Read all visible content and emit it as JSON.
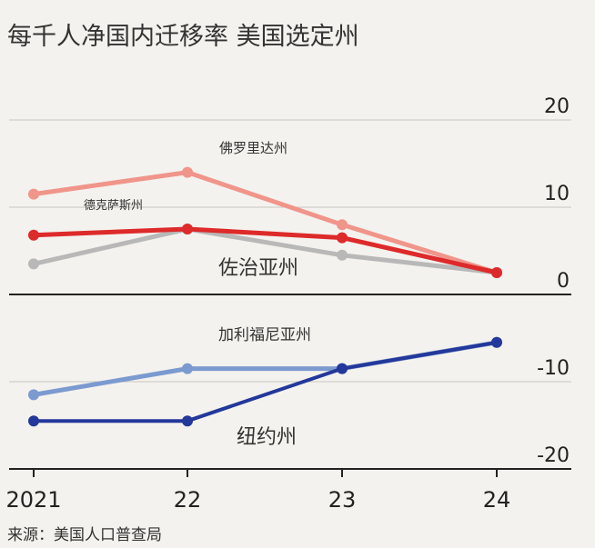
{
  "title": "每千人净国内迁移率 美国选定州",
  "source": "来源：美国人口普查局",
  "chart_data": {
    "type": "line",
    "x": [
      "2021",
      "22",
      "23",
      "24"
    ],
    "ylim": [
      -22,
      22
    ],
    "yticks": [
      20,
      10,
      0,
      -10,
      -20
    ],
    "grid": true,
    "series": [
      {
        "name": "佛罗里达州",
        "color": "#f0958a",
        "width": 5,
        "values": [
          11.5,
          14,
          8,
          2.5
        ]
      },
      {
        "name": "佐治亚州",
        "color": "#b8b8b8",
        "width": 5,
        "values": [
          3.5,
          7.5,
          4.5,
          2.5
        ]
      },
      {
        "name": "德克萨斯州",
        "color": "#dd2a2a",
        "width": 5,
        "values": [
          6.8,
          7.5,
          6.5,
          2.5
        ]
      },
      {
        "name": "加利福尼亚州",
        "color": "#7b9ad0",
        "width": 5,
        "values": [
          -11.5,
          -8.5,
          -8.5,
          -5.5
        ]
      },
      {
        "name": "纽约州",
        "color": "#23389a",
        "width": 4,
        "values": [
          -14.5,
          -14.5,
          -8.5,
          -5.5
        ]
      }
    ],
    "labels": [
      {
        "series": 0,
        "text": "佛罗里达州"
      },
      {
        "series": 2,
        "text": "德克萨斯州"
      },
      {
        "series": 1,
        "text": "佐治亚州"
      },
      {
        "series": 3,
        "text": "加利福尼亚州"
      },
      {
        "series": 4,
        "text": "纽约州"
      }
    ]
  }
}
